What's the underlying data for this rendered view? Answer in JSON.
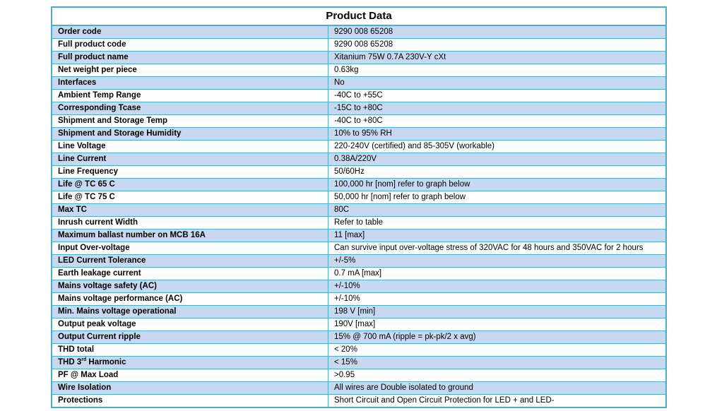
{
  "title": "Product Data",
  "rows": [
    {
      "label": "Order code",
      "value": "9290 008 65208"
    },
    {
      "label": "Full product code",
      "value": "9290 008 65208"
    },
    {
      "label": "Full product name",
      "value": "Xitanium 75W 0.7A 230V-Y cXt"
    },
    {
      "label": "Net weight per piece",
      "value": "0.63kg"
    },
    {
      "label": "Interfaces",
      "value": "No"
    },
    {
      "label": "Ambient Temp Range",
      "value": "-40C to +55C"
    },
    {
      "label": "Corresponding Tcase",
      "value": "-15C to +80C"
    },
    {
      "label": "Shipment and Storage Temp",
      "value": "-40C to +80C"
    },
    {
      "label": "Shipment and Storage Humidity",
      "value": "10% to 95% RH"
    },
    {
      "label": "Line Voltage",
      "value": "220-240V (certified) and 85-305V (workable)"
    },
    {
      "label": "Line Current",
      "value": "0.38A/220V"
    },
    {
      "label": "Line Frequency",
      "value": "50/60Hz"
    },
    {
      "label": "Life @ TC 65 C",
      "value": "100,000 hr [nom]  refer to graph below"
    },
    {
      "label": "Life @ TC 75 C",
      "value": "50,000 hr [nom]  refer to graph below"
    },
    {
      "label": "Max TC",
      "value": "80C"
    },
    {
      "label": "Inrush current Width",
      "value": "Refer to table"
    },
    {
      "label": "Maximum ballast number on MCB 16A",
      "value": " 11 [max]"
    },
    {
      "label": "Input Over-voltage",
      "value": "Can survive input over-voltage stress of 320VAC for 48 hours and 350VAC for 2 hours"
    },
    {
      "label": "LED Current Tolerance",
      "value": "+/-5%"
    },
    {
      "label": "Earth leakage current",
      "value": "0.7 mA [max]"
    },
    {
      "label": "Mains voltage safety (AC)",
      "value": "+/-10%"
    },
    {
      "label": "Mains voltage performance (AC)",
      "value": "+/-10%"
    },
    {
      "label": "Min. Mains voltage operational",
      "value": "198 V [min]"
    },
    {
      "label": "Output peak voltage",
      "value": "190V [max]"
    },
    {
      "label": "Output Current ripple",
      "value": "15% @ 700 mA (ripple = pk-pk/2 x avg)"
    },
    {
      "label": "THD total",
      "value": "< 20%"
    },
    {
      "label_pre": "THD 3",
      "label_sup": "rd",
      "label_post": " Harmonic",
      "value": "< 15%"
    },
    {
      "label": "PF @ Max Load",
      "value": ">0.95"
    },
    {
      "label": "Wire Isolation",
      "value": "All wires are Double isolated to ground"
    },
    {
      "label": "Protections",
      "value": "Short Circuit and Open Circuit Protection for LED + and LED-"
    }
  ]
}
